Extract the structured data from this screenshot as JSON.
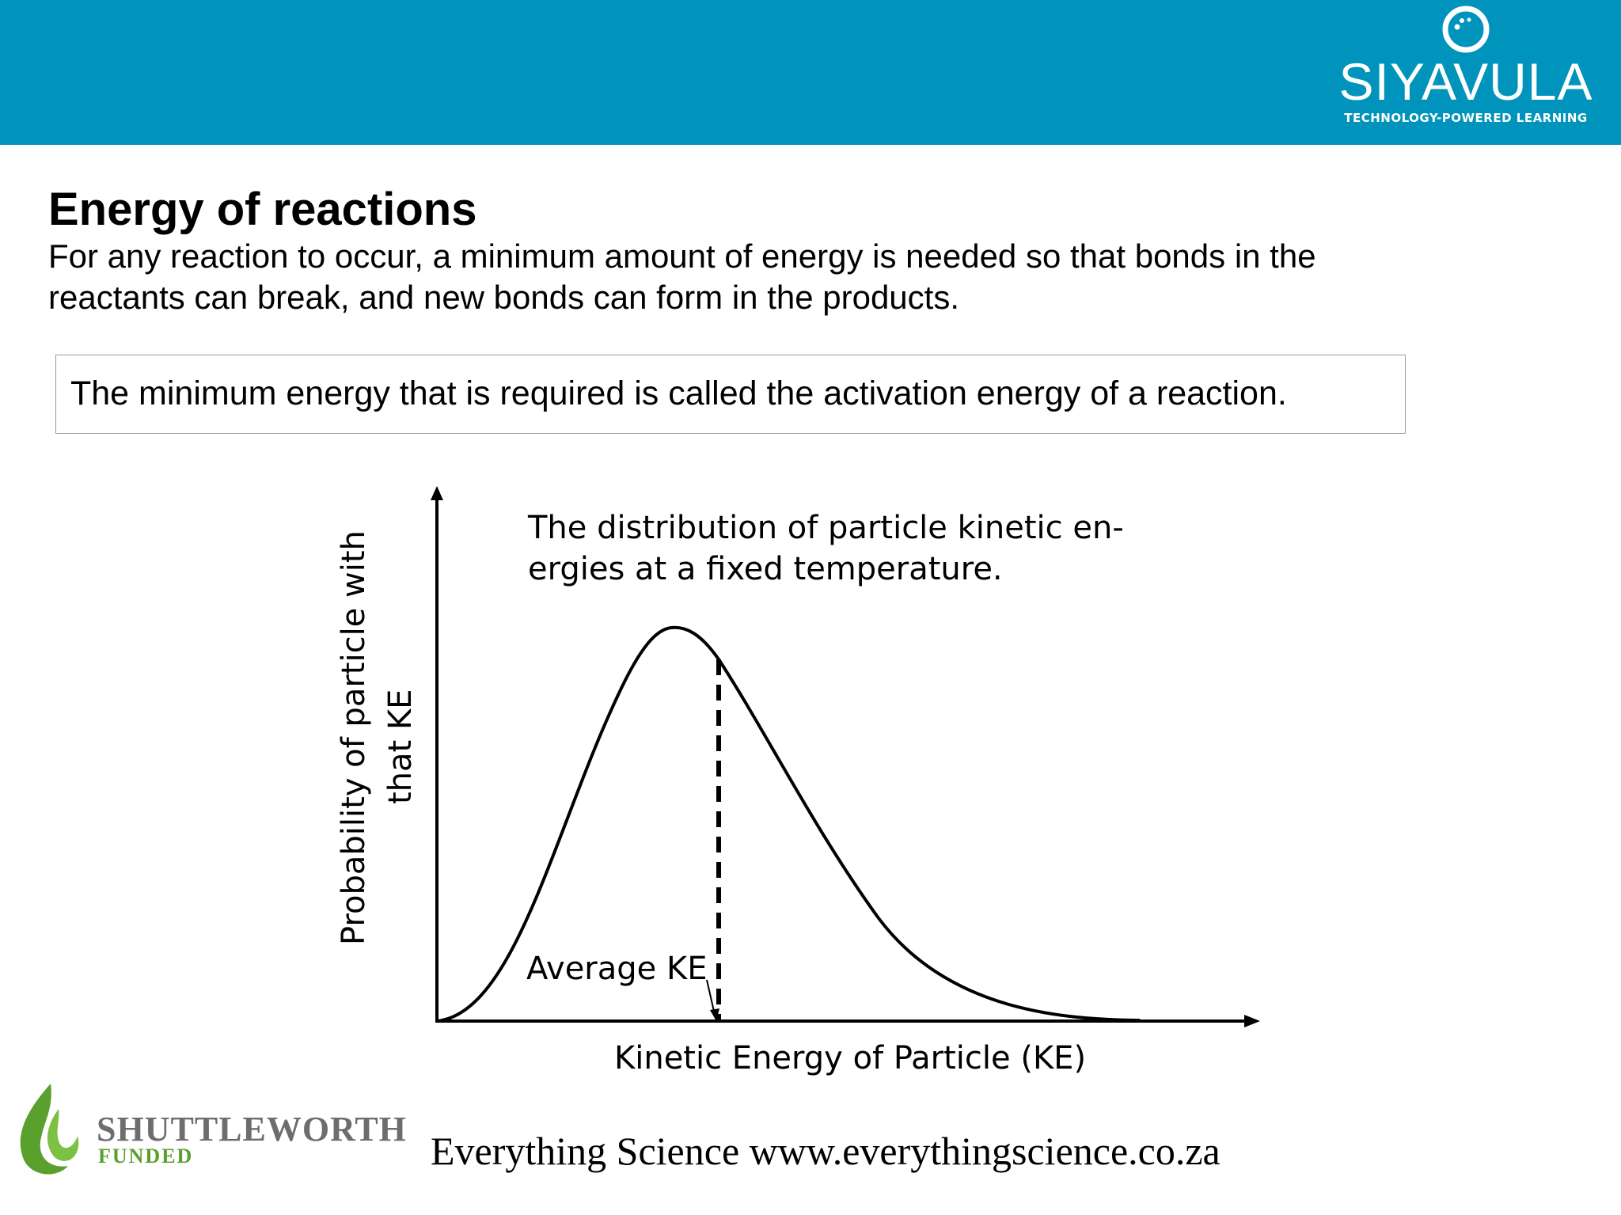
{
  "header": {
    "logo_name": "SIYAVULA",
    "logo_tagline": "TECHNOLOGY-POWERED LEARNING",
    "brand_color": "#0093bc",
    "logo_icon": "siyavula-ring-icon"
  },
  "slide": {
    "title": "Energy of reactions",
    "intro": "For any reaction to occur, a minimum amount of energy is needed so that bonds in the reactants can break, and new bonds can form in the products.",
    "definition": "The minimum energy that is required is called the activation energy of a reaction."
  },
  "figure": {
    "caption_line1": "The distribution of particle kinetic en-",
    "caption_line2": "ergies at a fixed temperature.",
    "ylabel_line1": "Probability of particle with",
    "ylabel_line2": "that KE",
    "xlabel": "Kinetic Energy of Particle (KE)",
    "average_label": "Average KE"
  },
  "footer": {
    "sponsor_name": "SHUTTLEWORTH",
    "sponsor_status": "FUNDED",
    "sponsor_color": "#5aa02c",
    "site_text": "Everything Science www.everythingscience.co.za"
  }
}
